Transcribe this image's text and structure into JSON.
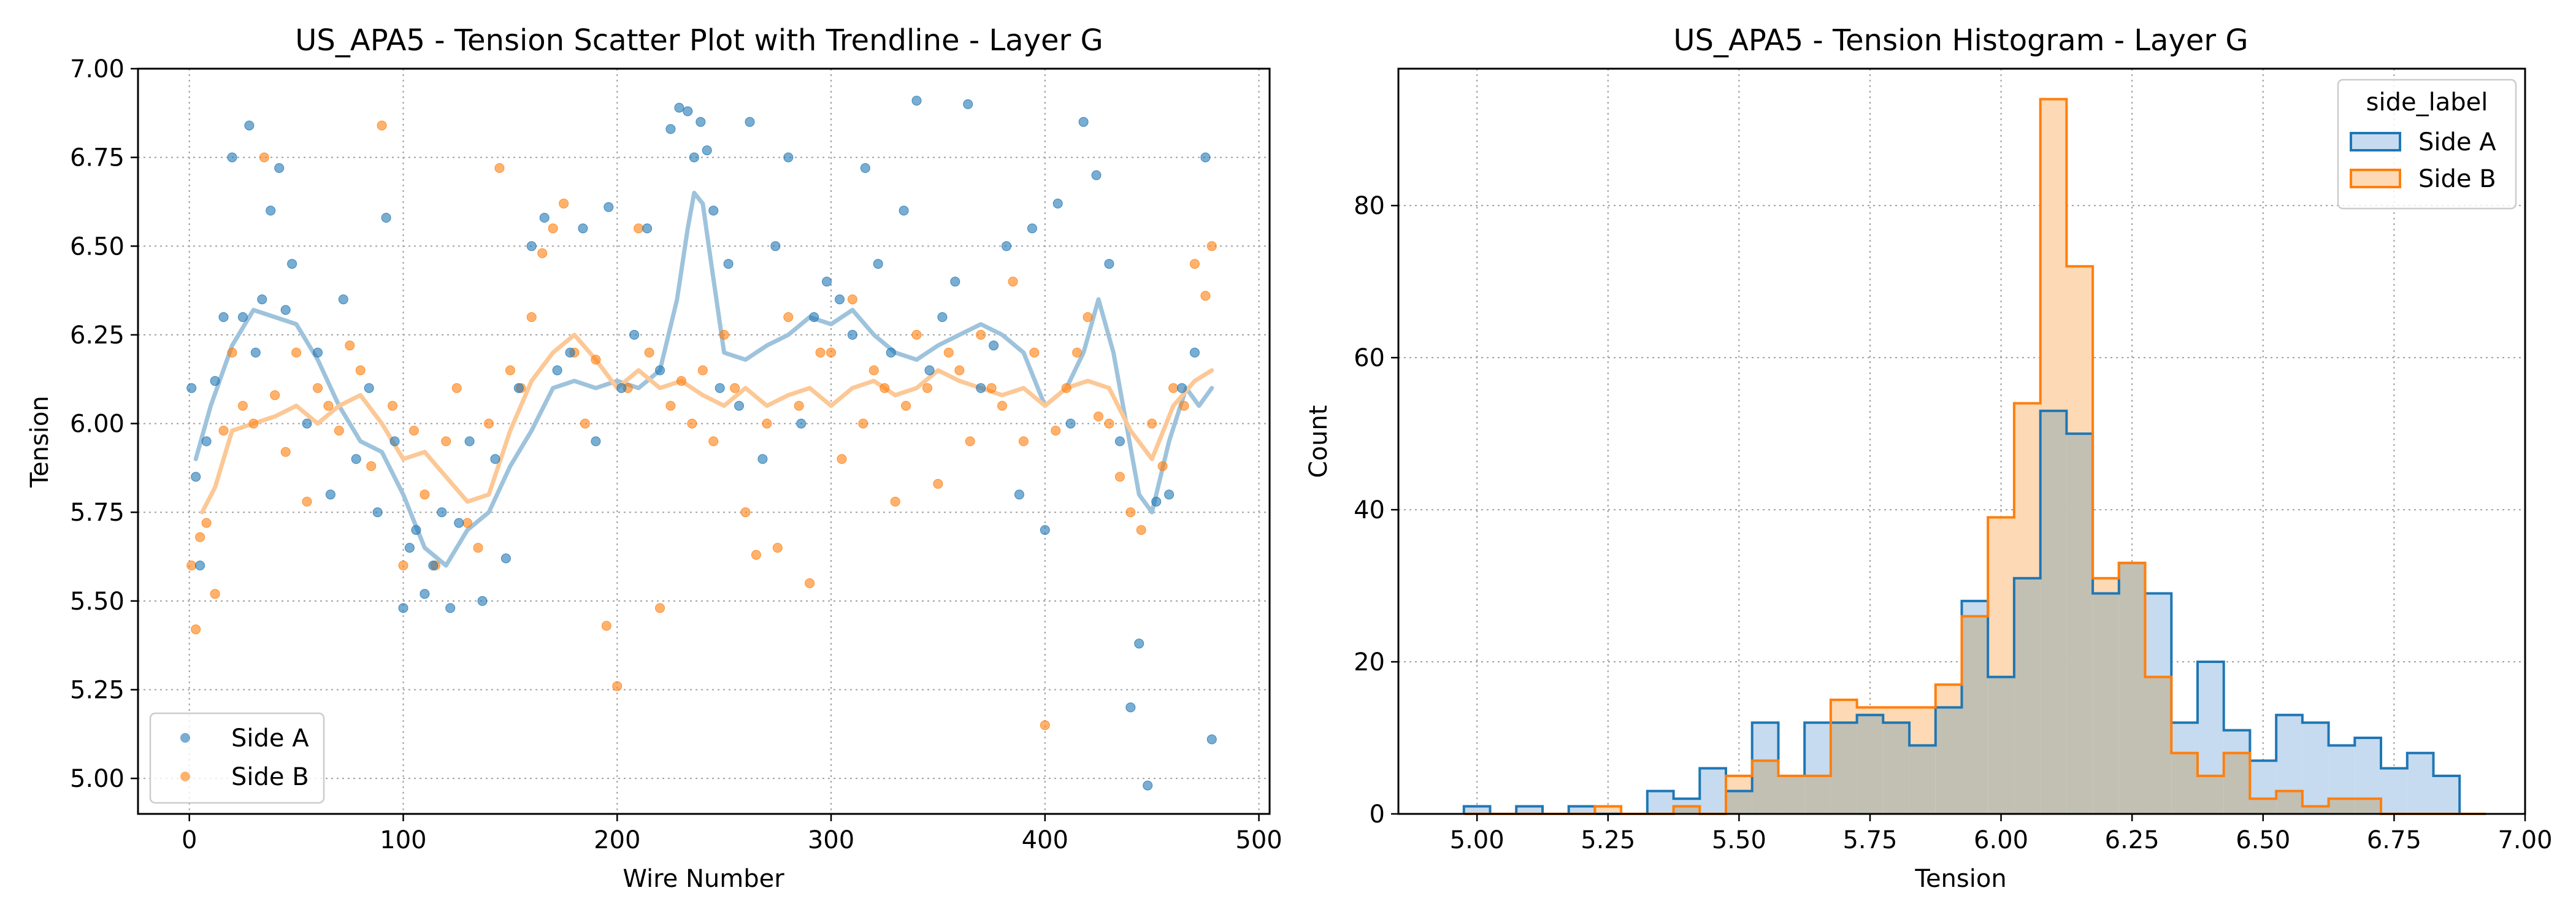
{
  "figure": {
    "left_title": "US_APA5 - Tension Scatter Plot with Trendline - Layer G",
    "right_title": "US_APA5 - Tension Histogram - Layer G"
  },
  "colors": {
    "side_a": "#1f77b4",
    "side_b": "#ff7f0e",
    "side_a_fill": "#c6dbef",
    "side_b_fill": "#fdd9b5",
    "overlap_fill": "#c2bfb3",
    "trend_a": "#9ec3dc",
    "trend_b": "#fcc896",
    "grid": "#a0a0a0"
  },
  "chart_data": [
    {
      "type": "scatter",
      "title": "US_APA5 - Tension Scatter Plot with Trendline - Layer G",
      "xlabel": "Wire Number",
      "ylabel": "Tension",
      "xlim": [
        -24,
        505
      ],
      "ylim": [
        4.9,
        7.0
      ],
      "xticks": [
        0,
        100,
        200,
        300,
        400,
        500
      ],
      "xtick_labels": [
        "0",
        "100",
        "200",
        "300",
        "400",
        "500"
      ],
      "yticks": [
        5.0,
        5.25,
        5.5,
        5.75,
        6.0,
        6.25,
        6.5,
        6.75,
        7.0
      ],
      "ytick_labels": [
        "5.00",
        "5.25",
        "5.50",
        "5.75",
        "6.00",
        "6.25",
        "6.50",
        "6.75",
        "7.00"
      ],
      "grid": true,
      "legend": {
        "position": "lower-left",
        "entries": [
          "Side A",
          "Side B"
        ]
      },
      "series": [
        {
          "name": "Side A",
          "markers": "points",
          "x": [
            1,
            3,
            5,
            8,
            12,
            16,
            20,
            25,
            28,
            31,
            34,
            38,
            42,
            45,
            48,
            55,
            60,
            66,
            72,
            78,
            84,
            88,
            92,
            96,
            100,
            103,
            106,
            110,
            114,
            118,
            122,
            126,
            131,
            137,
            143,
            148,
            154,
            160,
            166,
            172,
            178,
            184,
            190,
            196,
            202,
            208,
            214,
            220,
            225,
            229,
            233,
            236,
            239,
            242,
            245,
            248,
            252,
            257,
            262,
            268,
            274,
            280,
            286,
            292,
            298,
            304,
            310,
            316,
            322,
            328,
            334,
            340,
            346,
            352,
            358,
            364,
            370,
            376,
            382,
            388,
            394,
            400,
            406,
            412,
            418,
            424,
            430,
            435,
            440,
            444,
            448,
            452,
            458,
            464,
            470,
            475,
            478
          ],
          "y": [
            6.1,
            5.85,
            5.6,
            5.95,
            6.12,
            6.3,
            6.75,
            6.3,
            6.84,
            6.2,
            6.35,
            6.6,
            6.72,
            6.32,
            6.45,
            6.0,
            6.2,
            5.8,
            6.35,
            5.9,
            6.1,
            5.75,
            6.58,
            5.95,
            5.48,
            5.65,
            5.7,
            5.52,
            5.6,
            5.75,
            5.48,
            5.72,
            5.95,
            5.5,
            5.9,
            5.62,
            6.1,
            6.5,
            6.58,
            6.15,
            6.2,
            6.55,
            5.95,
            6.61,
            6.1,
            6.25,
            6.55,
            6.15,
            6.83,
            6.89,
            6.88,
            6.75,
            6.85,
            6.77,
            6.6,
            6.1,
            6.45,
            6.05,
            6.85,
            5.9,
            6.5,
            6.75,
            6.0,
            6.3,
            6.4,
            6.35,
            6.25,
            6.72,
            6.45,
            6.2,
            6.6,
            6.91,
            6.15,
            6.3,
            6.4,
            6.9,
            6.1,
            6.22,
            6.5,
            5.8,
            6.55,
            5.7,
            6.62,
            6.0,
            6.85,
            6.7,
            6.45,
            5.95,
            5.2,
            5.38,
            4.98,
            5.78,
            5.8,
            6.1,
            6.2,
            6.75,
            5.11
          ]
        },
        {
          "name": "Side B",
          "markers": "points",
          "x": [
            1,
            3,
            5,
            8,
            12,
            16,
            20,
            25,
            30,
            35,
            40,
            45,
            50,
            55,
            60,
            65,
            70,
            75,
            80,
            85,
            90,
            95,
            100,
            105,
            110,
            115,
            120,
            125,
            130,
            135,
            140,
            145,
            150,
            155,
            160,
            165,
            170,
            175,
            180,
            185,
            190,
            195,
            200,
            205,
            210,
            215,
            220,
            225,
            230,
            235,
            240,
            245,
            250,
            255,
            260,
            265,
            270,
            275,
            280,
            285,
            290,
            295,
            300,
            305,
            310,
            315,
            320,
            325,
            330,
            335,
            340,
            345,
            350,
            355,
            360,
            365,
            370,
            375,
            380,
            385,
            390,
            395,
            400,
            405,
            410,
            415,
            420,
            425,
            430,
            435,
            440,
            445,
            450,
            455,
            460,
            465,
            470,
            475,
            478
          ],
          "y": [
            5.6,
            5.42,
            5.68,
            5.72,
            5.52,
            5.98,
            6.2,
            6.05,
            6.0,
            6.75,
            6.08,
            5.92,
            6.2,
            5.78,
            6.1,
            6.05,
            5.98,
            6.22,
            6.15,
            5.88,
            6.84,
            6.05,
            5.6,
            5.98,
            5.8,
            5.6,
            5.95,
            6.1,
            5.72,
            5.65,
            6.0,
            6.72,
            6.15,
            6.1,
            6.3,
            6.48,
            6.55,
            6.62,
            6.2,
            6.0,
            6.18,
            5.43,
            5.26,
            6.1,
            6.55,
            6.2,
            5.48,
            6.05,
            6.12,
            6.0,
            6.15,
            5.95,
            6.25,
            6.1,
            5.75,
            5.63,
            6.0,
            5.65,
            6.3,
            6.05,
            5.55,
            6.2,
            6.2,
            5.9,
            6.35,
            6.0,
            6.15,
            6.1,
            5.78,
            6.05,
            6.25,
            6.1,
            5.83,
            6.2,
            6.15,
            5.95,
            6.25,
            6.1,
            6.05,
            6.4,
            5.95,
            6.2,
            5.15,
            5.98,
            6.1,
            6.2,
            6.3,
            6.02,
            6.0,
            5.85,
            5.75,
            5.7,
            6.0,
            5.88,
            6.1,
            6.05,
            6.45,
            6.36,
            6.5
          ]
        },
        {
          "name": "",
          "markers": "line",
          "x": [
            3,
            10,
            20,
            30,
            40,
            50,
            60,
            70,
            80,
            90,
            100,
            110,
            120,
            130,
            140,
            150,
            160,
            170,
            180,
            190,
            200,
            210,
            220,
            228,
            233,
            236,
            240,
            244,
            250,
            260,
            270,
            280,
            290,
            300,
            310,
            320,
            330,
            340,
            350,
            360,
            370,
            380,
            390,
            400,
            410,
            418,
            425,
            432,
            438,
            444,
            450,
            458,
            466,
            472,
            478
          ],
          "y": [
            5.9,
            6.05,
            6.22,
            6.32,
            6.3,
            6.28,
            6.18,
            6.05,
            5.95,
            5.92,
            5.8,
            5.65,
            5.6,
            5.7,
            5.75,
            5.88,
            5.98,
            6.1,
            6.12,
            6.1,
            6.12,
            6.1,
            6.15,
            6.35,
            6.55,
            6.65,
            6.62,
            6.45,
            6.2,
            6.18,
            6.22,
            6.25,
            6.3,
            6.28,
            6.32,
            6.25,
            6.2,
            6.18,
            6.22,
            6.25,
            6.28,
            6.25,
            6.2,
            6.05,
            6.1,
            6.2,
            6.35,
            6.2,
            6.0,
            5.8,
            5.75,
            5.95,
            6.1,
            6.05,
            6.1
          ]
        },
        {
          "name": "",
          "markers": "line",
          "x": [
            6,
            12,
            20,
            30,
            40,
            50,
            60,
            70,
            80,
            90,
            100,
            110,
            120,
            130,
            140,
            150,
            160,
            170,
            180,
            190,
            200,
            210,
            220,
            230,
            240,
            250,
            260,
            270,
            280,
            290,
            300,
            310,
            320,
            330,
            340,
            350,
            360,
            370,
            380,
            390,
            400,
            410,
            420,
            430,
            440,
            450,
            460,
            470,
            478
          ],
          "y": [
            5.75,
            5.82,
            5.98,
            6.0,
            6.02,
            6.05,
            6.0,
            6.05,
            6.08,
            6.0,
            5.9,
            5.92,
            5.85,
            5.78,
            5.8,
            5.98,
            6.12,
            6.2,
            6.25,
            6.18,
            6.1,
            6.15,
            6.1,
            6.12,
            6.08,
            6.05,
            6.1,
            6.05,
            6.08,
            6.1,
            6.05,
            6.1,
            6.12,
            6.08,
            6.1,
            6.15,
            6.12,
            6.1,
            6.08,
            6.1,
            6.05,
            6.1,
            6.12,
            6.1,
            5.98,
            5.9,
            6.05,
            6.12,
            6.15
          ]
        }
      ]
    },
    {
      "type": "bar",
      "title": "US_APA5 - Tension Histogram - Layer G",
      "xlabel": "Tension",
      "ylabel": "Count",
      "xlim": [
        4.85,
        7.0
      ],
      "ylim": [
        0,
        98
      ],
      "xticks": [
        5.0,
        5.25,
        5.5,
        5.75,
        6.0,
        6.25,
        6.5,
        6.75,
        7.0
      ],
      "xtick_labels": [
        "5.00",
        "5.25",
        "5.50",
        "5.75",
        "6.00",
        "6.25",
        "6.50",
        "6.75",
        "7.00"
      ],
      "yticks": [
        0,
        20,
        40,
        60,
        80
      ],
      "ytick_labels": [
        "0",
        "20",
        "40",
        "60",
        "80"
      ],
      "grid": true,
      "legend": {
        "position": "top-right",
        "title": "side_label",
        "entries": [
          "Side A",
          "Side B"
        ]
      },
      "bin_edges": [
        4.975,
        5.025,
        5.075,
        5.125,
        5.175,
        5.225,
        5.275,
        5.325,
        5.375,
        5.425,
        5.475,
        5.525,
        5.575,
        5.625,
        5.675,
        5.725,
        5.775,
        5.825,
        5.875,
        5.925,
        5.975,
        6.025,
        6.075,
        6.125,
        6.175,
        6.225,
        6.275,
        6.325,
        6.375,
        6.425,
        6.475,
        6.525,
        6.575,
        6.625,
        6.675,
        6.725,
        6.775,
        6.825,
        6.875,
        6.925
      ],
      "series": [
        {
          "name": "Side A",
          "values": [
            1,
            0,
            1,
            0,
            1,
            0,
            0,
            3,
            2,
            6,
            3,
            12,
            5,
            12,
            12,
            13,
            12,
            9,
            14,
            28,
            18,
            31,
            53,
            50,
            29,
            33,
            29,
            12,
            20,
            11,
            7,
            13,
            12,
            9,
            10,
            6,
            8,
            5,
            0
          ]
        },
        {
          "name": "Side B",
          "values": [
            0,
            0,
            0,
            0,
            0,
            1,
            0,
            0,
            1,
            0,
            5,
            7,
            5,
            5,
            15,
            14,
            14,
            14,
            17,
            26,
            39,
            54,
            94,
            72,
            31,
            33,
            18,
            8,
            5,
            8,
            2,
            3,
            1,
            2,
            2,
            0,
            0,
            0,
            0
          ]
        }
      ]
    }
  ]
}
